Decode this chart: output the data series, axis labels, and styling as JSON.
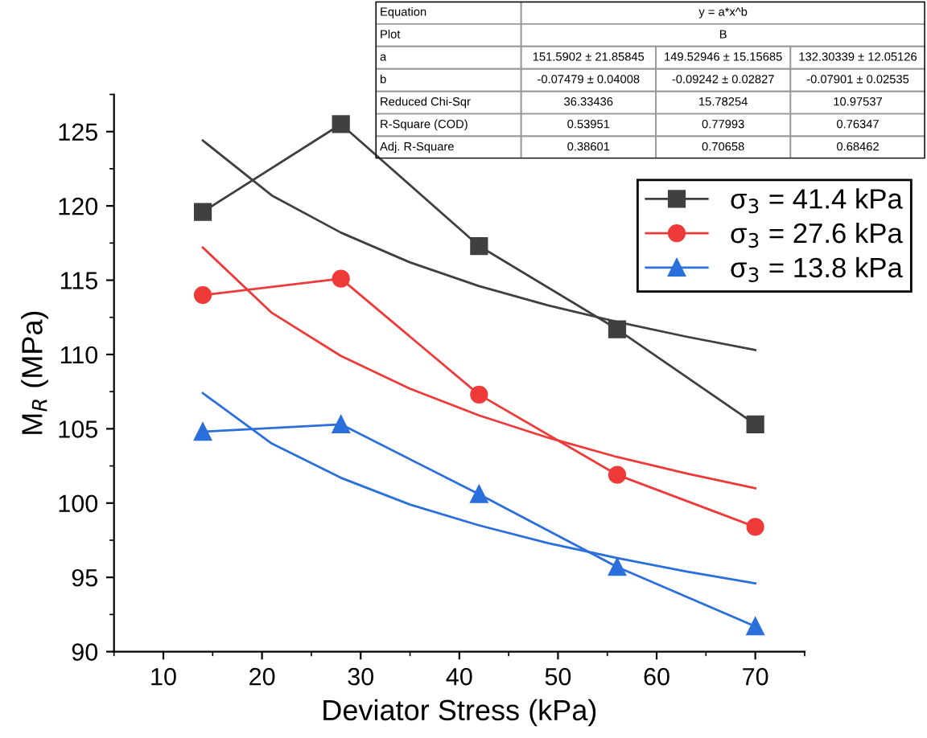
{
  "chart_data": {
    "type": "line",
    "xlabel": "Deviator Stress (kPa)",
    "ylabel": "M$_{R}$ (MPa)",
    "xlim": [
      5,
      75
    ],
    "xticks": [
      10,
      20,
      30,
      40,
      50,
      60,
      70
    ],
    "ylim": [
      90,
      127.5
    ],
    "yticks": [
      90,
      95,
      100,
      105,
      110,
      115,
      120,
      125
    ],
    "grid": false,
    "legend": "top right",
    "series": [
      {
        "name": "σ$_{3}$ = 41.4 kPa",
        "color": "#404040",
        "marker": "square",
        "line_style": "solid",
        "x": [
          14,
          28,
          42,
          56,
          70
        ],
        "values": [
          119.6,
          125.5,
          117.3,
          111.7,
          105.3
        ]
      },
      {
        "name": "σ$_{3}$ = 27.6 kPa",
        "color": "#ef3a3a",
        "marker": "circle",
        "line_style": "solid",
        "x": [
          14,
          28,
          42,
          56,
          70
        ],
        "values": [
          114.0,
          115.1,
          107.3,
          101.9,
          98.4
        ]
      },
      {
        "name": "σ$_{3}$ = 13.8 kPa",
        "color": "#2a6fdb",
        "marker": "triangle",
        "line_style": "solid",
        "x": [
          14,
          28,
          42,
          56,
          70
        ],
        "values": [
          104.8,
          105.3,
          100.6,
          95.7,
          91.7
        ]
      },
      {
        "color": "#404040",
        "marker": "none",
        "line_style": "solid",
        "x": [
          14,
          21,
          28,
          35,
          42,
          49,
          56,
          63,
          70
        ],
        "values": [
          124.4,
          120.7,
          118.2,
          116.2,
          114.6,
          113.3,
          112.2,
          111.2,
          110.3
        ]
      },
      {
        "color": "#ef3a3a",
        "marker": "none",
        "line_style": "solid",
        "x": [
          14,
          21,
          28,
          35,
          42,
          49,
          56,
          63,
          70
        ],
        "values": [
          117.2,
          112.8,
          109.9,
          107.7,
          105.9,
          104.4,
          103.1,
          102.0,
          101.0
        ]
      },
      {
        "color": "#2a6fdb",
        "marker": "none",
        "line_style": "solid",
        "x": [
          14,
          21,
          28,
          35,
          42,
          49,
          56,
          63,
          70
        ],
        "values": [
          107.4,
          104.0,
          101.7,
          99.9,
          98.5,
          97.3,
          96.3,
          95.4,
          94.6
        ]
      }
    ],
    "annotations": [
      "Equation",
      "y = a*x^b",
      "Plot",
      "B",
      "a",
      "151.5902 ± 21.85845",
      "149.52946 ± 15.15685",
      "132.30339 ± 12.05126",
      "b",
      "-0.07479 ± 0.04008",
      "-0.09242 ± 0.02827",
      "-0.07901 ± 0.02535",
      "Reduced Chi-Sqr",
      "36.33436",
      "15.78254",
      "10.97537",
      "R-Square (COD)",
      "0.53951",
      "0.77993",
      "0.76347",
      "Adj. R-Square",
      "0.38601",
      "0.70658",
      "0.68462"
    ]
  }
}
